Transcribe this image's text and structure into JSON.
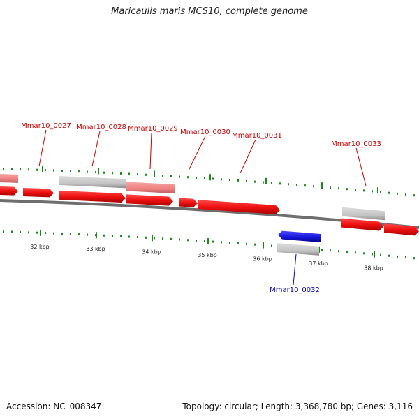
{
  "title": "Maricaulis maris MCS10, complete genome",
  "footer": {
    "accession": "Accession: NC_008347",
    "summary": "Topology: circular; Length: 3,368,780 bp; Genes: 3,116"
  },
  "colors": {
    "forward_gene": "#ee1111",
    "forward_gene_light": "#f08888",
    "reverse_gene": "#1a1ae0",
    "cds_grey": "#c4c4c4",
    "backbone": "#7a7a7a",
    "ticks": "#1a8a1a",
    "forward_label": "#cc0000",
    "reverse_label": "#0000cc"
  },
  "scale": {
    "ticks": [
      {
        "label": "32 kbp"
      },
      {
        "label": "33 kbp"
      },
      {
        "label": "34 kbp"
      },
      {
        "label": "35 kbp"
      },
      {
        "label": "36 kbp"
      },
      {
        "label": "37 kbp"
      },
      {
        "label": "38 kbp"
      }
    ]
  },
  "genes": [
    {
      "label": "Mmar10_0027",
      "strand": "forward"
    },
    {
      "label": "Mmar10_0028",
      "strand": "forward"
    },
    {
      "label": "Mmar10_0029",
      "strand": "forward"
    },
    {
      "label": "Mmar10_0030",
      "strand": "forward"
    },
    {
      "label": "Mmar10_0031",
      "strand": "forward"
    },
    {
      "label": "Mmar10_0032",
      "strand": "reverse"
    },
    {
      "label": "Mmar10_0033",
      "strand": "forward"
    }
  ]
}
